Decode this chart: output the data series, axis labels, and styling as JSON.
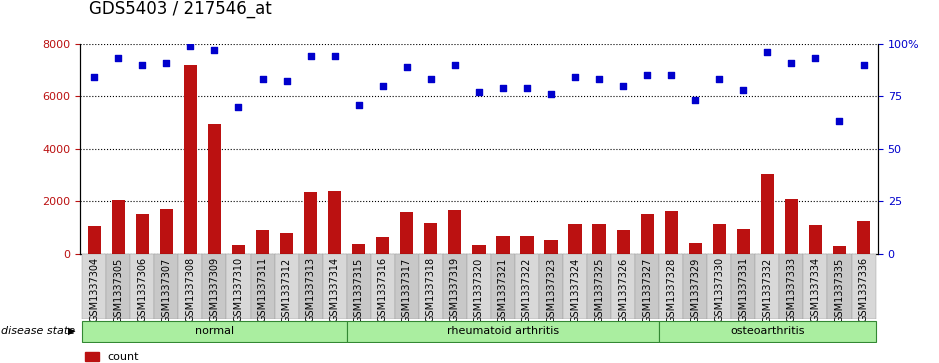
{
  "title": "GDS5403 / 217546_at",
  "samples": [
    "GSM1337304",
    "GSM1337305",
    "GSM1337306",
    "GSM1337307",
    "GSM1337308",
    "GSM1337309",
    "GSM1337310",
    "GSM1337311",
    "GSM1337312",
    "GSM1337313",
    "GSM1337314",
    "GSM1337315",
    "GSM1337316",
    "GSM1337317",
    "GSM1337318",
    "GSM1337319",
    "GSM1337320",
    "GSM1337321",
    "GSM1337322",
    "GSM1337323",
    "GSM1337324",
    "GSM1337325",
    "GSM1337326",
    "GSM1337327",
    "GSM1337328",
    "GSM1337329",
    "GSM1337330",
    "GSM1337331",
    "GSM1337332",
    "GSM1337333",
    "GSM1337334",
    "GSM1337335",
    "GSM1337336"
  ],
  "counts": [
    1050,
    2050,
    1520,
    1720,
    7200,
    4950,
    350,
    900,
    800,
    2350,
    2400,
    400,
    650,
    1600,
    1200,
    1680,
    350,
    680,
    680,
    550,
    1130,
    1130,
    900,
    1530,
    1640,
    420,
    1130,
    950,
    3050,
    2100,
    1120,
    300,
    1250
  ],
  "percentiles": [
    84,
    93,
    90,
    91,
    99,
    97,
    70,
    83,
    82,
    94,
    94,
    71,
    80,
    89,
    83,
    90,
    77,
    79,
    79,
    76,
    84,
    83,
    80,
    85,
    85,
    73,
    83,
    78,
    96,
    91,
    93,
    63,
    90
  ],
  "groups": [
    {
      "label": "normal",
      "start": 0,
      "end": 11
    },
    {
      "label": "rheumatoid arthritis",
      "start": 11,
      "end": 24
    },
    {
      "label": "osteoarthritis",
      "start": 24,
      "end": 33
    }
  ],
  "ylim_left": [
    0,
    8000
  ],
  "ylim_right": [
    0,
    100
  ],
  "yticks_left": [
    0,
    2000,
    4000,
    6000,
    8000
  ],
  "yticks_right": [
    0,
    25,
    50,
    75,
    100
  ],
  "bar_color": "#bb1111",
  "dot_color": "#0000cc",
  "group_color": "#aaeea0",
  "group_border_color": "#338833",
  "tick_fontsize": 7,
  "label_fontsize": 8,
  "title_fontsize": 12
}
